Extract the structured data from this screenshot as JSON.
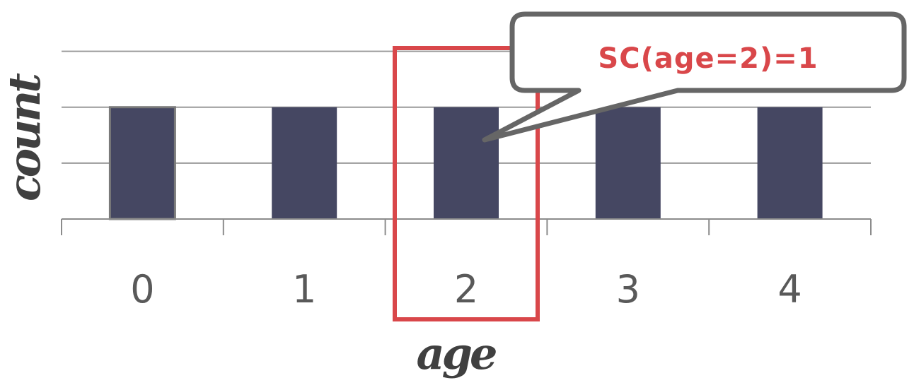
{
  "chart_data": {
    "type": "bar",
    "categories": [
      "0",
      "1",
      "2",
      "3",
      "4"
    ],
    "values": [
      1,
      1,
      1,
      1,
      1
    ],
    "title": "",
    "xlabel": "age",
    "ylabel": "count",
    "ylim": [
      0,
      1.75
    ],
    "grid": true,
    "bar_color": "#454762",
    "highlight": {
      "category": "2",
      "color": "#d9474a"
    },
    "callout": {
      "text": "SC(age=2)=1",
      "points_to": "2"
    }
  }
}
